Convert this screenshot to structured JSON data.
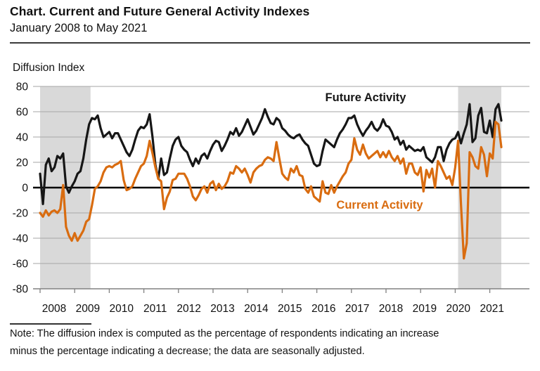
{
  "header": {
    "title": "Chart. Current and Future General Activity Indexes",
    "subtitle": "January 2008 to May 2021"
  },
  "yaxis_title": "Diffusion Index",
  "note": {
    "line1": "Note: The diffusion index is computed as the percentage of respondents indicating an increase",
    "line2": "minus the percentage indicating a decrease; the data are seasonally adjusted."
  },
  "colors": {
    "future_activity": "#161616",
    "current_activity": "#d96c10",
    "recession_band": "#d9d9d9",
    "gridline": "#a6a6a6",
    "zero_line": "#000000",
    "axis": "#808080",
    "text": "#111111"
  },
  "chart_data": {
    "type": "line",
    "title": "Current and Future General Activity Indexes",
    "x_frequency": "monthly",
    "x_start": "2008-01",
    "x_end": "2021-05",
    "xlabel": "",
    "ylabel": "Diffusion Index",
    "ylim": [
      -80,
      80
    ],
    "yticks": [
      80,
      60,
      40,
      20,
      0,
      -20,
      -40,
      -60,
      -80
    ],
    "xtick_labels": [
      "2008",
      "2009",
      "2010",
      "2011",
      "2012",
      "2013",
      "2014",
      "2015",
      "2016",
      "2017",
      "2018",
      "2019",
      "2020",
      "2021"
    ],
    "grid": "horizontal",
    "legend_position": "inline-labels",
    "recession_bands": [
      {
        "from": "2008-01",
        "to": "2009-06",
        "start_index": 0,
        "end_index": 17.5
      },
      {
        "from": "2020-02",
        "to": "2021-05",
        "start_index": 145,
        "end_index": 160
      }
    ],
    "series": [
      {
        "name": "Future Activity",
        "color": "#161616",
        "values": [
          11,
          -13,
          18,
          23,
          13,
          16,
          25,
          23,
          27,
          1,
          -4,
          1,
          5,
          11,
          13,
          23,
          38,
          50,
          55,
          54,
          57,
          47,
          40,
          42,
          44,
          39,
          43,
          43,
          38,
          33,
          28,
          25,
          30,
          38,
          45,
          48,
          47,
          50,
          58,
          40,
          18,
          7,
          23,
          10,
          12,
          23,
          33,
          38,
          40,
          33,
          30,
          28,
          22,
          17,
          23,
          19,
          25,
          27,
          23,
          29,
          34,
          37,
          36,
          29,
          33,
          38,
          44,
          42,
          47,
          41,
          44,
          49,
          54,
          48,
          42,
          45,
          50,
          55,
          62,
          56,
          51,
          50,
          55,
          53,
          47,
          45,
          42,
          40,
          39,
          41,
          42,
          38,
          35,
          33,
          26,
          19,
          17,
          18,
          29,
          38,
          36,
          34,
          32,
          38,
          43,
          46,
          50,
          55,
          55,
          57,
          50,
          45,
          41,
          45,
          48,
          52,
          47,
          45,
          48,
          54,
          49,
          48,
          44,
          38,
          40,
          34,
          37,
          30,
          33,
          31,
          29,
          30,
          29,
          32,
          24,
          22,
          20,
          24,
          32,
          32,
          21,
          30,
          35,
          38,
          39,
          44,
          35,
          43,
          50,
          66,
          36,
          39,
          57,
          63,
          44,
          43,
          53,
          40,
          62,
          66,
          53
        ]
      },
      {
        "name": "Current Activity",
        "color": "#d96c10",
        "values": [
          -20,
          -23,
          -18,
          -22,
          -19,
          -18,
          -20,
          -17,
          2,
          -31,
          -38,
          -42,
          -36,
          -42,
          -38,
          -34,
          -27,
          -25,
          -14,
          -1,
          1,
          5,
          12,
          16,
          17,
          16,
          18,
          19,
          21,
          6,
          -2,
          -1,
          1,
          7,
          12,
          17,
          19,
          25,
          37,
          27,
          16,
          7,
          5,
          -17,
          -8,
          -3,
          6,
          7,
          11,
          11,
          11,
          7,
          1,
          -7,
          -10,
          -6,
          -1,
          1,
          -4,
          3,
          5,
          -2,
          3,
          -1,
          1,
          5,
          12,
          11,
          17,
          15,
          12,
          15,
          10,
          4,
          12,
          15,
          17,
          18,
          22,
          24,
          23,
          21,
          36,
          23,
          11,
          8,
          6,
          15,
          12,
          17,
          10,
          9,
          -1,
          -4,
          1,
          -7,
          -9,
          -11,
          5,
          -4,
          -5,
          2,
          -4,
          1,
          5,
          9,
          12,
          19,
          22,
          39,
          30,
          26,
          34,
          27,
          23,
          25,
          27,
          29,
          24,
          28,
          24,
          29,
          24,
          21,
          25,
          19,
          23,
          11,
          19,
          19,
          12,
          10,
          16,
          -3,
          14,
          8,
          15,
          0,
          21,
          17,
          12,
          7,
          9,
          2,
          16,
          37,
          -13,
          -56,
          -44,
          28,
          24,
          17,
          15,
          32,
          26,
          9,
          27,
          23,
          52,
          50,
          32
        ]
      }
    ]
  }
}
